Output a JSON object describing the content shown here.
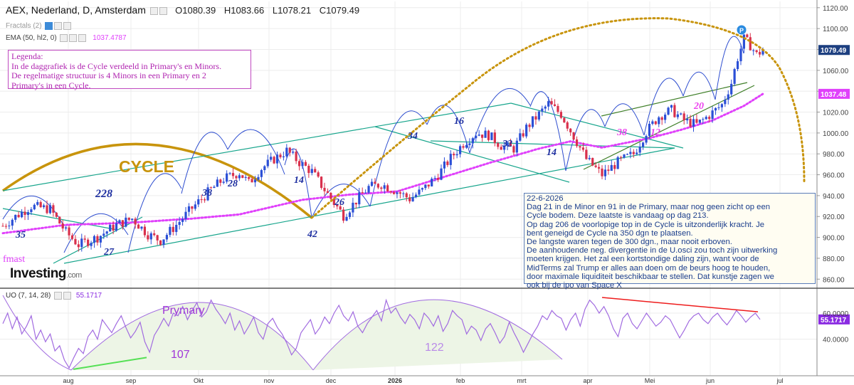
{
  "header": {
    "title": "AEX, Nederland, D, Amsterdam",
    "ohlc": [
      "O1080.39",
      "H1083.66",
      "L1078.21",
      "C1079.49"
    ],
    "fractals": "Fractals (2)",
    "ema_label": "EMA (50, hl2, 0)",
    "ema_value": "1037.4787"
  },
  "legend_box": [
    "Legenda:",
    "In de daggrafiek is de Cycle verdeeld in Primary's en Minors.",
    "De regelmatige structuur is 4 Minors in een Primary en 2",
    "Primary's in een Cycle."
  ],
  "note_box": [
    "22-6-2026",
    "Dag 21 in de Minor en 91 in de Primary, maar nog geen zicht op een",
    "Cycle bodem. Deze laatste is vandaag op dag 213.",
    "Op dag 206 de voorlopige  top in de Cycle is uitzonderlijk kracht. Je",
    "bent geneigd de Cycle na 350 dgn te plaatsen.",
    "De langste waren tegen de 300 dgn., maar nooit erboven.",
    "De aanhoudende neg. divergentie in de U.osci zou toch zijn uitwerking",
    "moeten krijgen. Het zal een  kortstondige daling zijn, want voor de",
    "MidTerms zal Trump er alles aan doen om de beurs hoog te houden,",
    "door maximale liquiditeit beschikbaar te stellen. Dat kunstje zagen we",
    "ook bij de ipo van Space X"
  ],
  "watermark": {
    "author": "fmast",
    "brand": "Investing",
    "brand_suffix": ".com"
  },
  "uo": {
    "label": "UO (7, 14, 28)",
    "value": "55.1717",
    "price_tag": "55.1717"
  },
  "price_tags": {
    "last": "1079.49",
    "ema": "1037.48"
  },
  "annotations": {
    "cycle": "CYCLE",
    "cycle_days": "228",
    "primary": "Prymary",
    "primary1_days": "107",
    "primary2_days": "122",
    "minors_blue": [
      "35",
      "27",
      "38",
      "28",
      "14",
      "42",
      "26",
      "34",
      "16",
      "32",
      "14"
    ],
    "minors_pink": [
      "38",
      "12",
      "20"
    ],
    "p_marker": "P"
  },
  "colors": {
    "up_candle": "#2b4fd6",
    "down_candle": "#d9304c",
    "ema": "#e040fb",
    "channel": "#17a58c",
    "cycle": "#c8940c",
    "minor_arc": "#2c4ccf",
    "uo_line": "#a16be0",
    "divergence_neg": "#ee1c1c",
    "divergence_pos": "#55e055",
    "axis_text": "#444"
  },
  "chart_data": [
    {
      "type": "candlestick",
      "title": "AEX, Nederland, D, Amsterdam",
      "x_ticks": [
        "aug",
        "sep",
        "Okt",
        "nov",
        "dec",
        "2026",
        "feb",
        "mrt",
        "apr",
        "Mei",
        "jun",
        "jul"
      ],
      "y_ticks": [
        860,
        880,
        900,
        920,
        940,
        960,
        980,
        1000,
        1020,
        1040,
        1060,
        1080,
        1100,
        1120
      ],
      "y_tick_labels": [
        "860.00",
        "880.00",
        "900.00",
        "920.00",
        "940.00",
        "960.00",
        "980.00",
        "1000.00",
        "1020.00",
        "1040.00",
        "1060.00",
        "1080.00",
        "1100.00",
        "1120.00"
      ],
      "ylim": [
        852,
        1126
      ],
      "last_close": 1079.49,
      "ema_last": 1037.48,
      "close_path": [
        [
          0,
          911
        ],
        [
          8,
          920
        ],
        [
          18,
          930
        ],
        [
          30,
          927
        ],
        [
          40,
          905
        ],
        [
          48,
          893
        ],
        [
          60,
          900
        ],
        [
          72,
          912
        ],
        [
          82,
          918
        ],
        [
          92,
          903
        ],
        [
          100,
          897
        ],
        [
          110,
          912
        ],
        [
          120,
          928
        ],
        [
          130,
          943
        ],
        [
          140,
          956
        ],
        [
          150,
          962
        ],
        [
          156,
          952
        ],
        [
          164,
          966
        ],
        [
          172,
          975
        ],
        [
          180,
          983
        ],
        [
          188,
          972
        ],
        [
          196,
          963
        ],
        [
          202,
          950
        ],
        [
          210,
          933
        ],
        [
          216,
          921
        ],
        [
          224,
          935
        ],
        [
          232,
          948
        ],
        [
          240,
          951
        ],
        [
          250,
          944
        ],
        [
          258,
          937
        ],
        [
          266,
          945
        ],
        [
          276,
          960
        ],
        [
          284,
          976
        ],
        [
          292,
          990
        ],
        [
          300,
          1000
        ],
        [
          308,
          998
        ],
        [
          316,
          988
        ],
        [
          324,
          985
        ],
        [
          332,
          1005
        ],
        [
          340,
          1018
        ],
        [
          346,
          1028
        ],
        [
          354,
          1018
        ],
        [
          362,
          997
        ],
        [
          370,
          975
        ],
        [
          380,
          960
        ],
        [
          390,
          972
        ],
        [
          400,
          980
        ],
        [
          408,
          1001
        ],
        [
          416,
          1016
        ],
        [
          424,
          1022
        ],
        [
          432,
          1012
        ],
        [
          440,
          1008
        ],
        [
          448,
          1017
        ],
        [
          456,
          1027
        ],
        [
          462,
          1048
        ],
        [
          466,
          1072
        ],
        [
          470,
          1090
        ],
        [
          474,
          1084
        ],
        [
          478,
          1075
        ],
        [
          482,
          1079.49
        ]
      ],
      "ema_path": [
        [
          0,
          904
        ],
        [
          40,
          912
        ],
        [
          80,
          914
        ],
        [
          120,
          918
        ],
        [
          150,
          922
        ],
        [
          190,
          936
        ],
        [
          220,
          941
        ],
        [
          250,
          944
        ],
        [
          280,
          958
        ],
        [
          310,
          972
        ],
        [
          340,
          985
        ],
        [
          360,
          992
        ],
        [
          380,
          986
        ],
        [
          410,
          995
        ],
        [
          430,
          1003
        ],
        [
          450,
          1012
        ],
        [
          470,
          1026
        ],
        [
          482,
          1037.48
        ]
      ],
      "cycle_top_projection": {
        "peak": 1110,
        "turns_down_toward": 955
      },
      "labels": [
        "35",
        "27",
        "38",
        "28",
        "14",
        "42",
        "26",
        "34",
        "16",
        "32",
        "14",
        "38",
        "12",
        "20"
      ]
    },
    {
      "type": "line",
      "title": "UO (7, 14, 28)",
      "y_ticks": [
        40,
        60
      ],
      "y_tick_labels": [
        "40.0000",
        "60.0000"
      ],
      "ylim": [
        12,
        78
      ],
      "last_value": 55.1717,
      "series": [
        {
          "name": "UO (7, 14, 28)",
          "values": [
            52,
            60,
            48,
            57,
            44,
            50,
            58,
            40,
            47,
            38,
            44,
            31,
            35,
            24,
            18,
            26,
            33,
            29,
            42,
            47,
            40,
            55,
            50,
            45,
            52,
            58,
            49,
            41,
            46,
            53,
            38,
            30,
            43,
            49,
            56,
            50,
            60,
            58,
            65,
            55,
            62,
            68,
            57,
            61,
            70,
            63,
            58,
            52,
            60,
            47,
            54,
            44,
            50,
            57,
            45,
            40,
            52,
            56,
            49,
            44,
            37,
            28,
            33,
            45,
            50,
            55,
            44,
            49,
            57,
            52,
            60,
            66,
            58,
            54,
            61,
            50,
            45,
            52,
            57,
            62,
            54,
            70,
            60,
            64,
            57,
            52,
            59,
            55,
            48,
            60,
            56,
            50,
            58,
            46,
            52,
            62,
            58,
            55,
            44,
            50,
            47,
            39,
            48,
            52,
            45,
            37,
            42,
            53,
            45,
            38,
            30,
            37,
            44,
            50,
            58,
            55,
            62,
            58,
            56,
            47,
            55,
            60,
            50,
            63,
            70,
            66,
            60,
            65,
            58,
            48,
            42,
            56,
            60,
            52,
            48,
            54,
            60,
            55,
            50,
            53,
            58,
            55,
            48,
            41,
            47,
            54,
            58,
            60,
            55,
            52,
            57,
            60,
            55,
            51,
            56,
            62,
            58,
            53,
            57,
            60,
            55.17
          ]
        }
      ],
      "divergences": [
        {
          "type": "negative",
          "from": 70,
          "to": 61
        },
        {
          "type": "positive",
          "from": 18,
          "to": 29
        }
      ]
    }
  ]
}
